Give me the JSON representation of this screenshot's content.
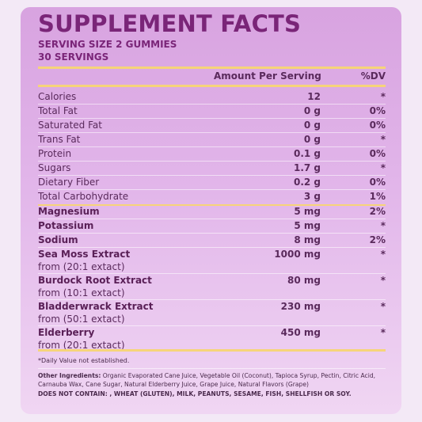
{
  "title": "SUPPLEMENT FACTS",
  "serving_size": "SERVING SIZE 2 GUMMIES",
  "servings": "30 SERVINGS",
  "headers": {
    "amount": "Amount Per Serving",
    "dv": "%DV"
  },
  "nutrients": [
    {
      "name": "Calories",
      "amount": "12",
      "dv": "*"
    },
    {
      "name": "Total Fat",
      "amount": "0 g",
      "dv": "0%"
    },
    {
      "name": "Saturated Fat",
      "amount": "0 g",
      "dv": "0%"
    },
    {
      "name": "Trans Fat",
      "amount": "0 g",
      "dv": "*"
    },
    {
      "name": "Protein",
      "amount": "0.1 g",
      "dv": "0%"
    },
    {
      "name": "Sugars",
      "amount": "1.7 g",
      "dv": "*"
    },
    {
      "name": "Dietary Fiber",
      "amount": "0.2 g",
      "dv": "0%"
    },
    {
      "name": "Total Carbohydrate",
      "amount": "3 g",
      "dv": "1%"
    }
  ],
  "minerals": [
    {
      "name": "Magnesium",
      "amount": "5 mg",
      "dv": "2%"
    },
    {
      "name": "Potassium",
      "amount": "5 mg",
      "dv": "*"
    },
    {
      "name": "Sodium",
      "amount": "8 mg",
      "dv": "2%"
    }
  ],
  "extracts": [
    {
      "name": "Sea Moss Extract",
      "sub": "from (20:1 extact)",
      "amount": "1000 mg",
      "dv": "*"
    },
    {
      "name": "Burdock Root Extract",
      "sub": "from (10:1 extact)",
      "amount": "80 mg",
      "dv": "*"
    },
    {
      "name": "Bladderwrack Extract",
      "sub": "from (50:1 extact)",
      "amount": "230 mg",
      "dv": "*"
    },
    {
      "name": "Elderberry",
      "sub": "from (20:1 extact)",
      "amount": "450 mg",
      "dv": "*"
    }
  ],
  "footnote": "*Daily Value not established.",
  "ingredients_label": "Other Ingredients:",
  "ingredients_text": " Organic Evaporated Cane Juice, Vegetable Oil (Coconut), Tapioca Syrup, Pectin, Citric Acid, Carnauba Wax, Cane Sugar, Natural Elderberry Juice, Grape Juice, Natural Flavors (Grape)",
  "does_not_contain": "DOES NOT CONTAIN: , WHEAT (GLUTEN), MILK, PEANUTS, SESAME, FISH, SHELLFISH OR SOY."
}
